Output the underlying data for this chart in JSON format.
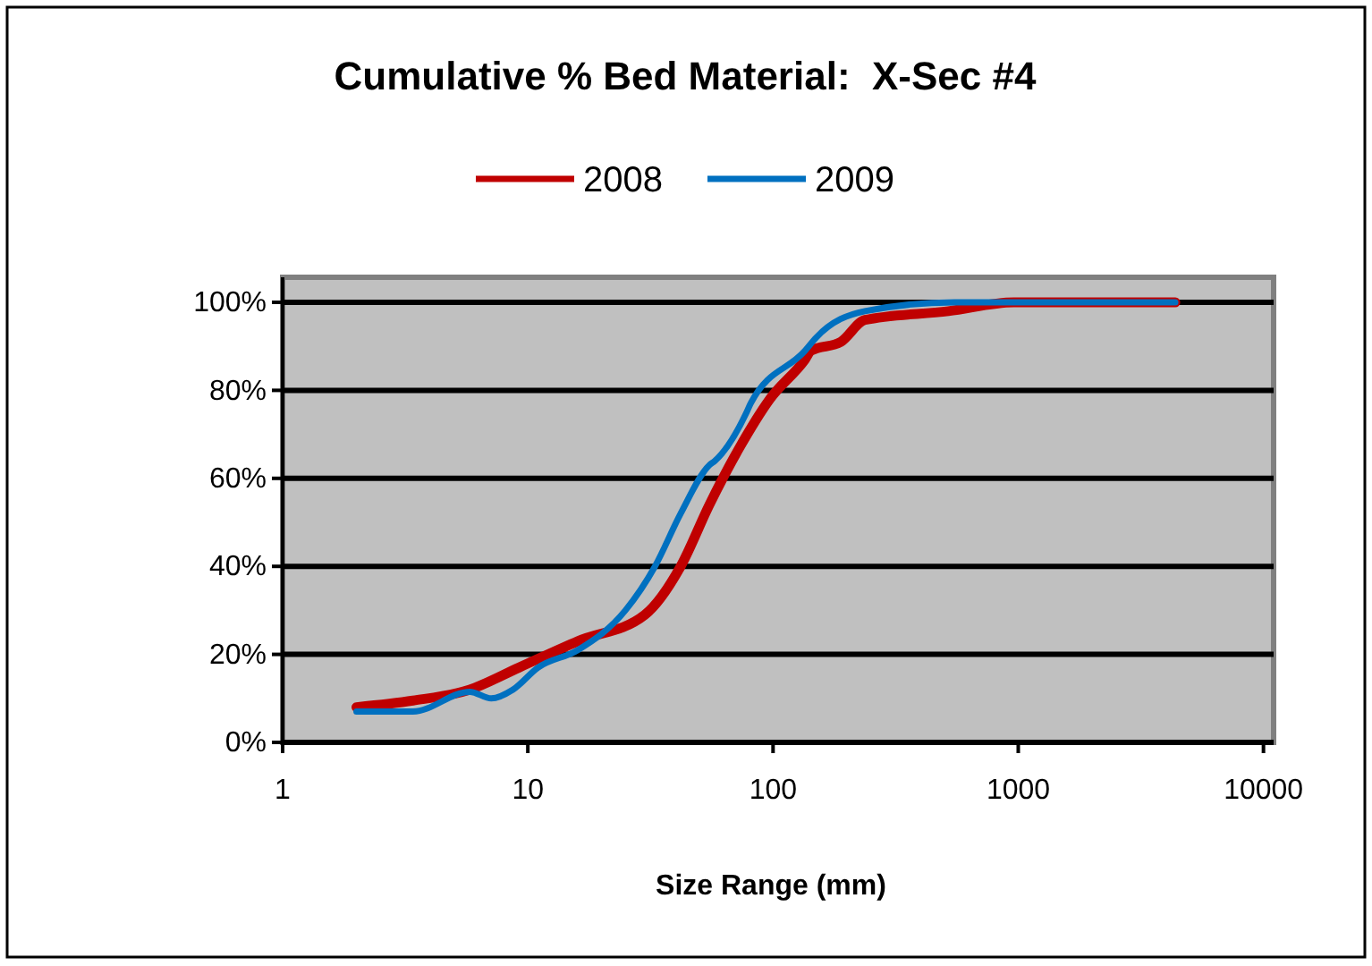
{
  "chart_data": {
    "type": "line",
    "title": "Cumulative % Bed Material:  X-Sec #4",
    "xlabel": "Size Range (mm)",
    "log": "x",
    "grid": "y",
    "legend": "top",
    "marker": "none",
    "line_style": "solid",
    "xlim": [
      1,
      11000
    ],
    "xticks": [
      1,
      10,
      100,
      1000,
      10000
    ],
    "ylim": [
      0,
      100
    ],
    "yticks": [
      {
        "value": 0,
        "label": "0%"
      },
      {
        "value": 20,
        "label": "20%"
      },
      {
        "value": 40,
        "label": "40%"
      },
      {
        "value": 60,
        "label": "60%"
      },
      {
        "value": 80,
        "label": "80%"
      },
      {
        "value": 100,
        "label": "100%"
      }
    ],
    "series": [
      {
        "name": "2008",
        "color": "#c00000",
        "x": [
          2,
          3.4,
          5.8,
          9.2,
          16,
          30,
          42,
          55,
          73,
          97,
          135,
          143,
          189,
          237,
          519,
          960,
          4370
        ],
        "values": [
          8,
          9.5,
          12,
          17,
          23,
          29,
          40,
          54,
          67,
          78,
          87,
          89,
          91,
          96,
          98,
          100,
          100
        ]
      },
      {
        "name": "2009",
        "color": "#0070c0",
        "x": [
          2,
          3.4,
          5.8,
          7.1,
          8.7,
          11,
          16,
          25,
          33,
          42,
          55,
          58,
          78,
          81,
          135,
          150,
          237,
          550,
          4370
        ],
        "values": [
          7,
          7,
          11.5,
          10,
          12,
          17,
          21,
          30,
          40,
          52,
          63,
          64,
          75,
          77,
          89,
          92,
          98,
          100,
          100
        ]
      }
    ]
  }
}
